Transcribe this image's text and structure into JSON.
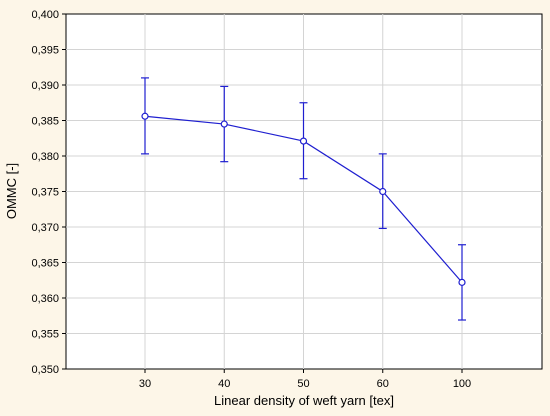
{
  "chart_data": {
    "type": "line",
    "title": "",
    "xlabel": "Linear density of weft yarn  [tex]",
    "ylabel": "OMMC  [-]",
    "categories": [
      "30",
      "40",
      "50",
      "60",
      "100"
    ],
    "values": [
      0.3856,
      0.3845,
      0.3821,
      0.375,
      0.3622
    ],
    "error_low": [
      0.3803,
      0.3792,
      0.3768,
      0.3698,
      0.3569
    ],
    "error_high": [
      0.391,
      0.3898,
      0.3875,
      0.3803,
      0.3675
    ],
    "ylim": [
      0.35,
      0.4
    ],
    "y_ticks": [
      "0,350",
      "0,355",
      "0,360",
      "0,365",
      "0,370",
      "0,375",
      "0,380",
      "0,385",
      "0,390",
      "0,395",
      "0,400"
    ],
    "grid": true,
    "colors": {
      "series": "#1f1fd0",
      "grid": "#d4d4d4",
      "plot_bg": "#ffffff",
      "page_bg": "#fdf6e8"
    }
  }
}
